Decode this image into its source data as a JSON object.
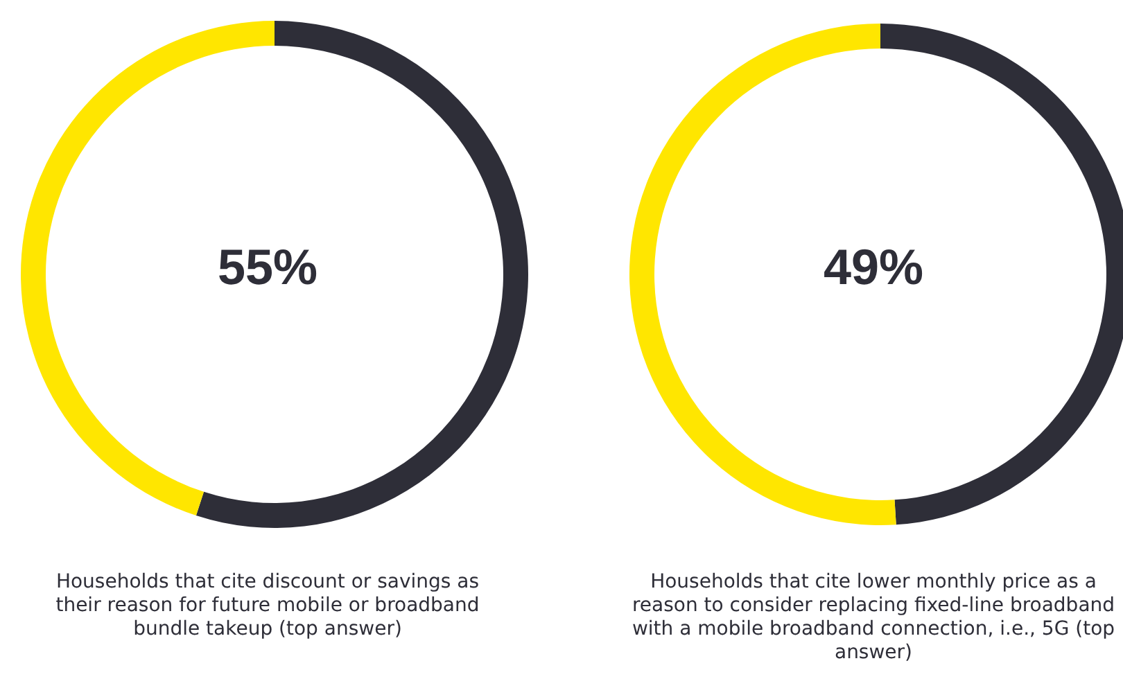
{
  "chart_data": [
    {
      "type": "donut",
      "categories": [
        null,
        null
      ],
      "values": [
        55,
        45
      ],
      "colors": [
        "#2e2e38",
        "#ffe600"
      ],
      "title": "55%",
      "annotations": [
        "Households that cite discount or savings as their reason for future mobile or broadband bundle takeup (top answer)"
      ]
    },
    {
      "type": "donut",
      "categories": [
        null,
        null
      ],
      "values": [
        49,
        51
      ],
      "colors": [
        "#2e2e38",
        "#ffe600"
      ],
      "title": "49%",
      "annotations": [
        "Households that cite lower monthly price as a reason to consider replacing fixed-line broadband with a mobile broadband connection, i.e., 5G (top answer)"
      ]
    }
  ]
}
